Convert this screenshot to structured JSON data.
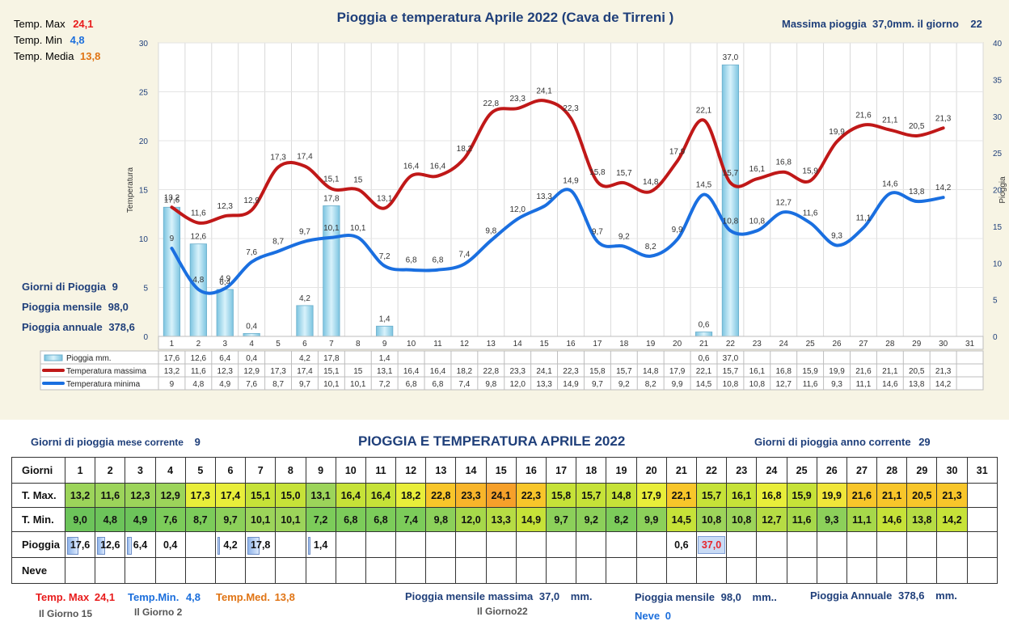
{
  "chart_data": {
    "type": "bar+line",
    "title": "Pioggia e temperatura Aprile 2022 (Cava de Tirreni )",
    "categories": [
      "1",
      "2",
      "3",
      "4",
      "5",
      "6",
      "7",
      "8",
      "9",
      "10",
      "11",
      "12",
      "13",
      "14",
      "15",
      "16",
      "17",
      "18",
      "19",
      "20",
      "21",
      "22",
      "23",
      "24",
      "25",
      "26",
      "27",
      "28",
      "29",
      "30",
      "31"
    ],
    "y_left_label": "Temperatura",
    "y_right_label": "Pioggia",
    "y_left_range": [
      0,
      30
    ],
    "y_left_ticks": [
      "0",
      "5",
      "10",
      "15",
      "20",
      "25",
      "30"
    ],
    "y_right_range": [
      0,
      40
    ],
    "y_right_ticks": [
      "0",
      "5",
      "10",
      "15",
      "20",
      "25",
      "30",
      "35",
      "40"
    ],
    "grid": true,
    "legend_position": "bottom (data table)",
    "series": [
      {
        "name": "Pioggia mm.",
        "type": "bar",
        "color": "#8fd3ea",
        "axis": "right",
        "values": [
          17.6,
          12.6,
          6.4,
          0.4,
          null,
          4.2,
          17.8,
          null,
          1.4,
          null,
          null,
          null,
          null,
          null,
          null,
          null,
          null,
          null,
          null,
          null,
          0.6,
          37.0,
          null,
          null,
          null,
          null,
          null,
          null,
          null,
          null,
          null
        ],
        "labels": [
          "17,6",
          "12,6",
          "6,4",
          "0,4",
          "",
          "4,2",
          "17,8",
          "",
          "1,4",
          "",
          "",
          "",
          "",
          "",
          "",
          "",
          "",
          "",
          "",
          "",
          "0,6",
          "37,0",
          "",
          "",
          "",
          "",
          "",
          "",
          "",
          "",
          ""
        ]
      },
      {
        "name": "Temperatura massima",
        "type": "line",
        "color": "#c01818",
        "axis": "left",
        "values": [
          13.2,
          11.6,
          12.3,
          12.9,
          17.3,
          17.4,
          15.1,
          15,
          13.1,
          16.4,
          16.4,
          18.2,
          22.8,
          23.3,
          24.1,
          22.3,
          15.8,
          15.7,
          14.8,
          17.9,
          22.1,
          15.7,
          16.1,
          16.8,
          15.9,
          19.9,
          21.6,
          21.1,
          20.5,
          21.3,
          null
        ],
        "labels": [
          "13,2",
          "11,6",
          "12,3",
          "12,9",
          "17,3",
          "17,4",
          "15,1",
          "15",
          "13,1",
          "16,4",
          "16,4",
          "18,2",
          "22,8",
          "23,3",
          "24,1",
          "22,3",
          "15,8",
          "15,7",
          "14,8",
          "17,9",
          "22,1",
          "15,7",
          "16,1",
          "16,8",
          "15,9",
          "19,9",
          "21,6",
          "21,1",
          "20,5",
          "21,3",
          ""
        ]
      },
      {
        "name": "Temperatura minima",
        "type": "line",
        "color": "#1a6fe0",
        "axis": "left",
        "values": [
          9,
          4.8,
          4.9,
          7.6,
          8.7,
          9.7,
          10.1,
          10.1,
          7.2,
          6.8,
          6.8,
          7.4,
          9.8,
          12.0,
          13.3,
          14.9,
          9.7,
          9.2,
          8.2,
          9.9,
          14.5,
          10.8,
          10.8,
          12.7,
          11.6,
          9.3,
          11.1,
          14.6,
          13.8,
          14.2,
          null
        ],
        "labels": [
          "9",
          "4,8",
          "4,9",
          "7,6",
          "8,7",
          "9,7",
          "10,1",
          "10,1",
          "7,2",
          "6,8",
          "6,8",
          "7,4",
          "9,8",
          "12,0",
          "13,3",
          "14,9",
          "9,7",
          "9,2",
          "8,2",
          "9,9",
          "14,5",
          "10,8",
          "10,8",
          "12,7",
          "11,6",
          "9,3",
          "11,1",
          "14,6",
          "13,8",
          "14,2",
          ""
        ]
      }
    ]
  },
  "top_stats": {
    "tmax_label": "Temp. Max",
    "tmax_value": "24,1",
    "tmin_label": "Temp. Min",
    "tmin_value": "4,8",
    "tmed_label": "Temp. Media",
    "tmed_value": "13,8",
    "max_rain_text": "Massima pioggia  37,0mm. il giorno    22",
    "rain_days_label": "Giorni di Pioggia",
    "rain_days_value": "9",
    "monthly_rain_label": "Pioggia mensile",
    "monthly_rain_value": "98,0",
    "annual_rain_label": "Pioggia annuale",
    "annual_rain_value": "378,6"
  },
  "table": {
    "title": "PIOGGIA E TEMPERATURA APRILE 2022",
    "rain_days_month_label": "Giorni di pioggia",
    "rain_days_month_suffix": "mese corrente",
    "rain_days_month_value": "9",
    "rain_days_year_label": "Giorni di pioggia anno corrente",
    "rain_days_year_value": "29",
    "row_labels": {
      "days": "Giorni",
      "tmax": "T. Max.",
      "tmin": "T. Min.",
      "rain": "Pioggia",
      "snow": "Neve"
    },
    "tmax": [
      "13,2",
      "11,6",
      "12,3",
      "12,9",
      "17,3",
      "17,4",
      "15,1",
      "15,0",
      "13,1",
      "16,4",
      "16,4",
      "18,2",
      "22,8",
      "23,3",
      "24,1",
      "22,3",
      "15,8",
      "15,7",
      "14,8",
      "17,9",
      "22,1",
      "15,7",
      "16,1",
      "16,8",
      "15,9",
      "19,9",
      "21,6",
      "21,1",
      "20,5",
      "21,3",
      ""
    ],
    "tmin": [
      "9,0",
      "4,8",
      "4,9",
      "7,6",
      "8,7",
      "9,7",
      "10,1",
      "10,1",
      "7,2",
      "6,8",
      "6,8",
      "7,4",
      "9,8",
      "12,0",
      "13,3",
      "14,9",
      "9,7",
      "9,2",
      "8,2",
      "9,9",
      "14,5",
      "10,8",
      "10,8",
      "12,7",
      "11,6",
      "9,3",
      "11,1",
      "14,6",
      "13,8",
      "14,2",
      ""
    ],
    "rain": [
      "17,6",
      "12,6",
      "6,4",
      "0,4",
      "",
      "4,2",
      "17,8",
      "",
      "1,4",
      "",
      "",
      "",
      "",
      "",
      "",
      "",
      "",
      "",
      "",
      "",
      "0,6",
      "37,0",
      "",
      "",
      "",
      "",
      "",
      "",
      "",
      "",
      ""
    ],
    "tmax_colors": [
      "#9cd45a",
      "#9cd45a",
      "#9cd45a",
      "#9cd45a",
      "#e8ee3a",
      "#e8ee3a",
      "#c6e238",
      "#c6e238",
      "#9cd45a",
      "#c6e238",
      "#c6e238",
      "#e8ee3a",
      "#f8c62a",
      "#f8b52a",
      "#f6a02a",
      "#f8c62a",
      "#c6e238",
      "#c6e238",
      "#c6e238",
      "#e8ee3a",
      "#f8c62a",
      "#c6e238",
      "#c6e238",
      "#e8ee3a",
      "#c6e238",
      "#f0e63a",
      "#f8c62a",
      "#f8c62a",
      "#f8c62a",
      "#f8c62a",
      ""
    ],
    "tmin_colors": [
      "#6cc45a",
      "#6cc45a",
      "#6cc45a",
      "#7ccc5a",
      "#7ccc5a",
      "#8cd05a",
      "#9cd45a",
      "#9cd45a",
      "#7ccc5a",
      "#7ccc5a",
      "#7ccc5a",
      "#7ccc5a",
      "#8cd05a",
      "#a6d84a",
      "#b6dc44",
      "#c6e238",
      "#8cd05a",
      "#8cd05a",
      "#7ccc5a",
      "#8cd05a",
      "#c6e238",
      "#9cd45a",
      "#9cd45a",
      "#b6dc44",
      "#a6d84a",
      "#8cd05a",
      "#a6d84a",
      "#c6e238",
      "#b6dc44",
      "#c6e238",
      ""
    ]
  },
  "bottom_stats": {
    "tmax_label": "Temp. Max",
    "tmax_value": "24,1",
    "tmax_day": "Il Giorno  15",
    "tmin_label": "Temp.Min.",
    "tmin_value": "4,8",
    "tmin_day": "Il Giorno  2",
    "tmed_label": "Temp.Med.",
    "tmed_value": "13,8",
    "max_month_rain_label": "Pioggia mensile massima",
    "max_month_rain_value": "37,0",
    "max_month_rain_unit": "mm.",
    "max_month_rain_day": "Il Giorno22",
    "monthly_rain_label": "Pioggia mensile",
    "monthly_rain_value": "98,0",
    "monthly_rain_unit": "mm..",
    "annual_rain_label": "Pioggia Annuale",
    "annual_rain_value": "378,6",
    "annual_rain_unit": "mm.",
    "snow_label": "Neve",
    "snow_value": "0"
  }
}
